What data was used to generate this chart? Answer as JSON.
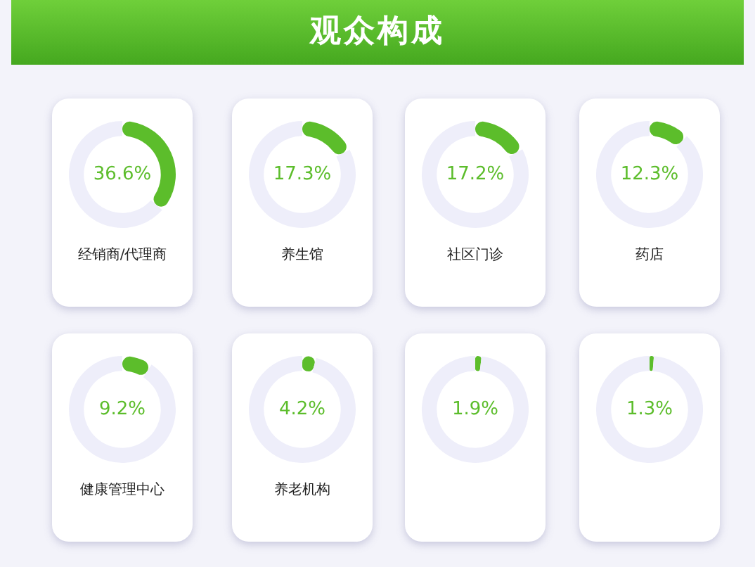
{
  "chart_data": [
    {
      "type": "donut",
      "annotations": [
        "观众构成"
      ],
      "title": "经销商/代理商",
      "categories": [
        null,
        null
      ],
      "values": [
        36.6,
        63.4
      ],
      "colors": [
        "#5cbd2b",
        "#eeeefa"
      ],
      "value_labels": [
        "36.6%",
        null
      ]
    },
    {
      "type": "donut",
      "title": "养生馆",
      "categories": [
        null,
        null
      ],
      "values": [
        17.3,
        82.7
      ],
      "colors": [
        "#5cbd2b",
        "#eeeefa"
      ],
      "value_labels": [
        "17.3%",
        null
      ]
    },
    {
      "type": "donut",
      "title": "社区门诊",
      "categories": [
        null,
        null
      ],
      "values": [
        17.2,
        82.8
      ],
      "colors": [
        "#5cbd2b",
        "#eeeefa"
      ],
      "value_labels": [
        "17.2%",
        null
      ]
    },
    {
      "type": "donut",
      "title": "药店",
      "categories": [
        null,
        null
      ],
      "values": [
        12.3,
        87.7
      ],
      "colors": [
        "#5cbd2b",
        "#eeeefa"
      ],
      "value_labels": [
        "12.3%",
        null
      ]
    },
    {
      "type": "donut",
      "title": "健康管理中心",
      "categories": [
        null,
        null
      ],
      "values": [
        9.2,
        90.8
      ],
      "colors": [
        "#5cbd2b",
        "#eeeefa"
      ],
      "value_labels": [
        "9.2%",
        null
      ]
    },
    {
      "type": "donut",
      "title": "养老机构",
      "categories": [
        null,
        null
      ],
      "values": [
        4.2,
        95.8
      ],
      "colors": [
        "#5cbd2b",
        "#eeeefa"
      ],
      "value_labels": [
        "4.2%",
        null
      ]
    },
    {
      "type": "donut",
      "categories": [
        null,
        null
      ],
      "values": [
        1.9,
        98.1
      ],
      "colors": [
        "#5cbd2b",
        "#eeeefa"
      ],
      "value_labels": [
        "1.9%",
        null
      ]
    },
    {
      "type": "donut",
      "categories": [
        null,
        null
      ],
      "values": [
        1.3,
        98.7
      ],
      "colors": [
        "#5cbd2b",
        "#eeeefa"
      ],
      "value_labels": [
        "1.3%",
        null
      ]
    }
  ]
}
